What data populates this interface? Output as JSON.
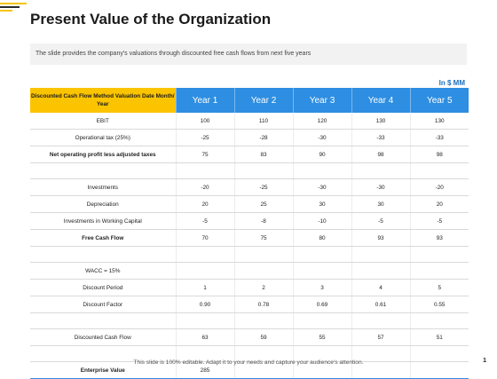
{
  "title": "Present Value of the Organization",
  "description": "The slide provides the company's valuations through discounted free cash flows from next five years",
  "unit": "In $ MM",
  "table": {
    "corner_label": "Discounted Cash Flow Method Valuation Date Month/ Year",
    "years": [
      "Year 1",
      "Year 2",
      "Year 3",
      "Year 4",
      "Year 5"
    ],
    "rows": [
      {
        "label": "EBIT",
        "bold": false,
        "values": [
          "100",
          "110",
          "120",
          "130",
          "130"
        ]
      },
      {
        "label": "Operational tax (25%)",
        "bold": false,
        "values": [
          "-25",
          "-28",
          "-30",
          "-33",
          "-33"
        ]
      },
      {
        "label": "Net operating profit less adjusted taxes",
        "bold": true,
        "values": [
          "75",
          "83",
          "90",
          "98",
          "98"
        ]
      },
      {
        "label": "",
        "bold": false,
        "values": [
          "",
          "",
          "",
          "",
          ""
        ]
      },
      {
        "label": "Investments",
        "bold": false,
        "values": [
          "-20",
          "-25",
          "-30",
          "-30",
          "-20"
        ]
      },
      {
        "label": "Depreciation",
        "bold": false,
        "values": [
          "20",
          "25",
          "30",
          "30",
          "20"
        ]
      },
      {
        "label": "Investments in Working Capital",
        "bold": false,
        "values": [
          "-5",
          "-8",
          "-10",
          "-5",
          "-5"
        ]
      },
      {
        "label": "Free Cash Flow",
        "bold": true,
        "values": [
          "70",
          "75",
          "80",
          "93",
          "93"
        ]
      },
      {
        "label": "",
        "bold": false,
        "values": [
          "",
          "",
          "",
          "",
          ""
        ]
      },
      {
        "label": "WACC = 15%",
        "bold": false,
        "values": [
          "",
          "",
          "",
          "",
          ""
        ]
      },
      {
        "label": "Discount Period",
        "bold": false,
        "values": [
          "1",
          "2",
          "3",
          "4",
          "5"
        ]
      },
      {
        "label": "Discount Factor",
        "bold": false,
        "values": [
          "0.90",
          "0.78",
          "0.69",
          "0.61",
          "0.55"
        ]
      },
      {
        "label": "",
        "bold": false,
        "values": [
          "",
          "",
          "",
          "",
          ""
        ]
      },
      {
        "label": "Discounted Cash Flow",
        "bold": false,
        "values": [
          "63",
          "59",
          "55",
          "57",
          "51"
        ]
      },
      {
        "label": "",
        "bold": false,
        "values": [
          "",
          "",
          "",
          "",
          ""
        ]
      },
      {
        "label": "Enterprise Value",
        "bold": true,
        "values": [
          "285",
          "",
          "",
          "",
          ""
        ]
      }
    ]
  },
  "footer": "This slide is 100% editable. Adapt it to your needs and capture your audience's attention.",
  "page_number": "1",
  "colors": {
    "accent_yellow": "#fbc400",
    "header_blue": "#2e8ee1",
    "unit_blue": "#1a6fc2"
  }
}
